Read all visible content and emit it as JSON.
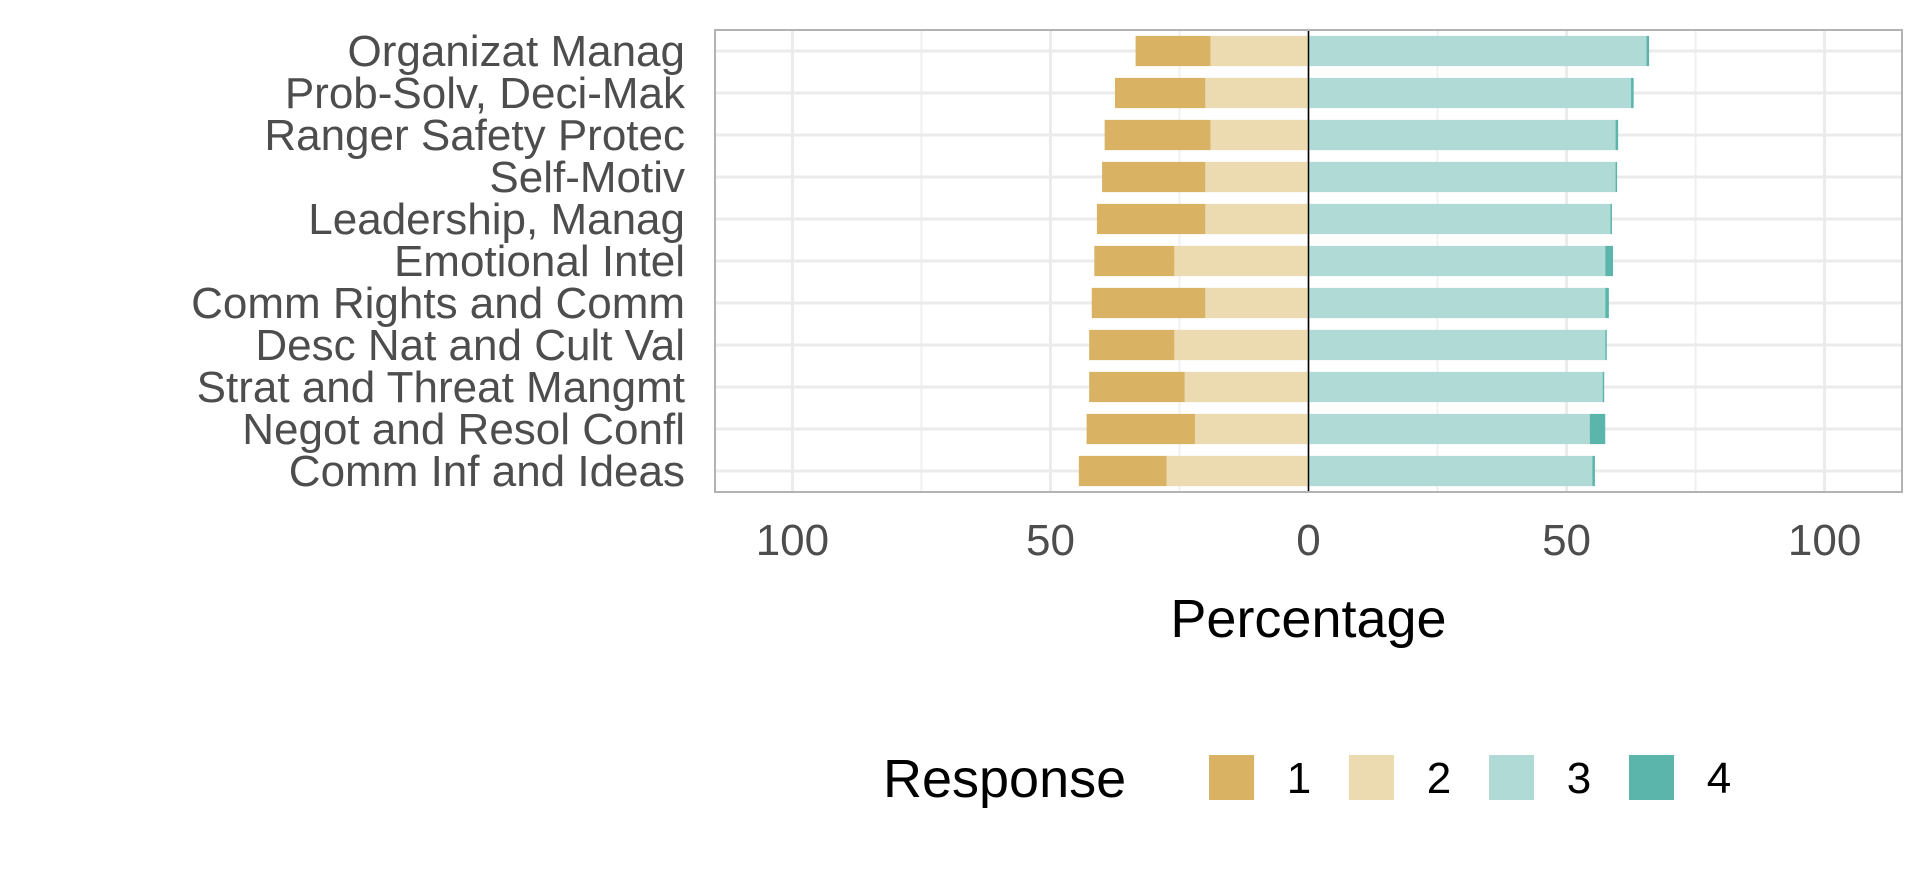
{
  "chart_data": {
    "type": "bar",
    "subtype": "diverging-stacked-horizontal",
    "xlabel": "Percentage",
    "ylabel": "",
    "xlim": [
      -115,
      115
    ],
    "x_ticks": [
      -100,
      -50,
      0,
      50,
      100
    ],
    "x_tick_labels": [
      "100",
      "50",
      "0",
      "50",
      "100"
    ],
    "grid": true,
    "legend": {
      "title": "Response",
      "position": "bottom",
      "entries": [
        "1",
        "2",
        "3",
        "4"
      ]
    },
    "colors": {
      "1": "#d9b264",
      "2": "#ecdab1",
      "3": "#afdad6",
      "4": "#5bb5ab"
    },
    "categories": [
      "Organizat Manag",
      "Prob-Solv, Deci-Mak",
      "Ranger Safety Protec",
      "Self-Motiv",
      "Leadership, Manag",
      "Emotional Intel",
      "Comm Rights and Comm",
      "Desc Nat and Cult Val",
      "Strat and Threat Mangmt",
      "Negot and Resol Confl",
      "Comm Inf and Ideas"
    ],
    "series": [
      {
        "name": "1",
        "side": "negative",
        "values": [
          14.5,
          17.5,
          20.5,
          20,
          21,
          15.5,
          22,
          16.5,
          18.5,
          21,
          17
        ]
      },
      {
        "name": "2",
        "side": "negative",
        "values": [
          19,
          20,
          19,
          20,
          20,
          26,
          20,
          26,
          24,
          22,
          27.5
        ]
      },
      {
        "name": "3",
        "side": "positive",
        "values": [
          65.5,
          62.5,
          59.5,
          59.5,
          58.5,
          57.5,
          57.5,
          57.5,
          57,
          54.5,
          55
        ]
      },
      {
        "name": "4",
        "side": "positive",
        "values": [
          0.5,
          0.5,
          0.5,
          0.3,
          0.3,
          1.5,
          0.7,
          0.3,
          0.3,
          3,
          0.5
        ]
      }
    ]
  }
}
